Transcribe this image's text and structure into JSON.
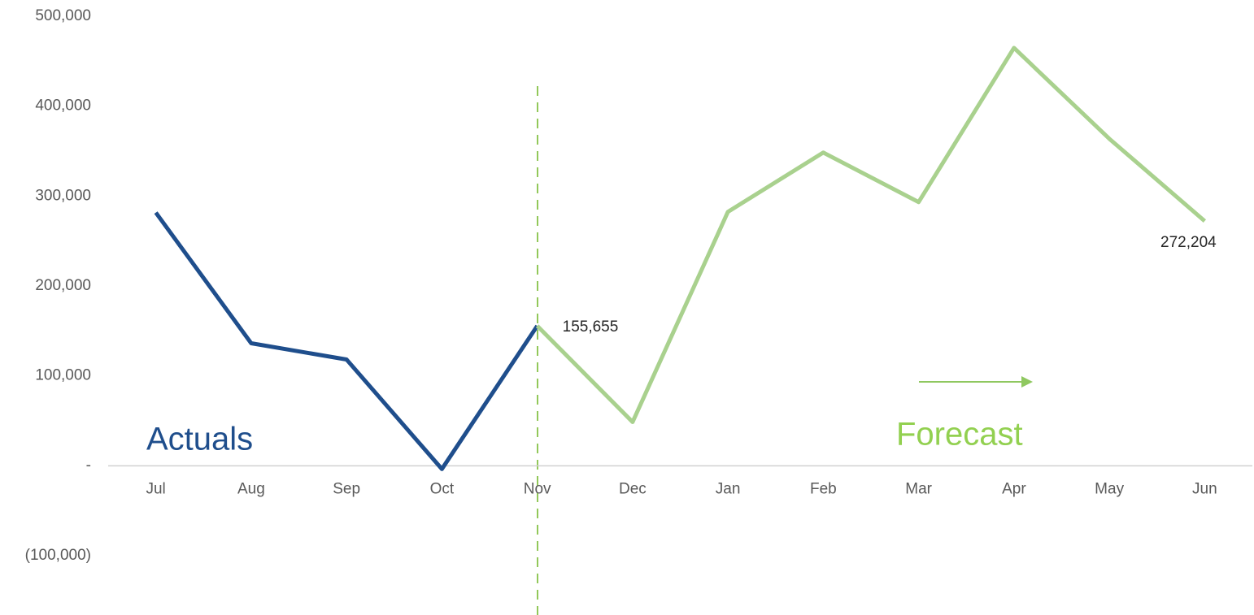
{
  "chart_data": {
    "type": "line",
    "categories": [
      "Jul",
      "Aug",
      "Sep",
      "Oct",
      "Nov",
      "Dec",
      "Jan",
      "Feb",
      "Mar",
      "Apr",
      "May",
      "Jun"
    ],
    "series": [
      {
        "name": "Actuals",
        "color": "#1f4e8c",
        "values": [
          281600,
          136300,
          118200,
          -3600,
          155655,
          null,
          null,
          null,
          null,
          null,
          null,
          null
        ]
      },
      {
        "name": "Forecast",
        "color": "#a9d18e",
        "values": [
          null,
          null,
          null,
          null,
          155655,
          48700,
          282500,
          348400,
          293300,
          464800,
          363700,
          272204
        ],
        "value_labels": [
          null,
          null,
          null,
          null,
          "155,655",
          null,
          null,
          null,
          null,
          null,
          null,
          "272,204"
        ]
      }
    ],
    "ylim": [
      -100000,
      500000
    ],
    "yticks": [
      {
        "value": -100000,
        "label": "(100,000)"
      },
      {
        "value": 0,
        "label": "-"
      },
      {
        "value": 100000,
        "label": "100,000"
      },
      {
        "value": 200000,
        "label": "200,000"
      },
      {
        "value": 300000,
        "label": "300,000"
      },
      {
        "value": 400000,
        "label": "400,000"
      },
      {
        "value": 500000,
        "label": "500,000"
      }
    ],
    "grid": false
  }
}
